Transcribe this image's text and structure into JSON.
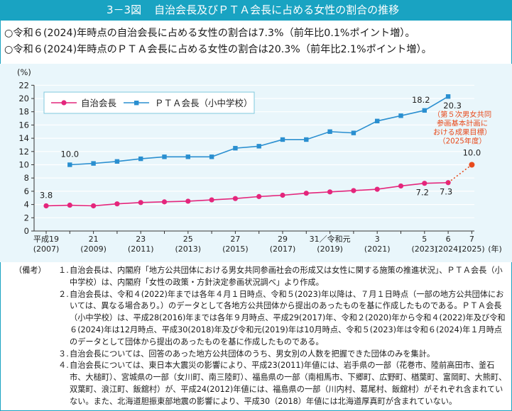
{
  "header": {
    "figure_no": "3－3図",
    "title": "自治会長及びＰＴＡ会長に占める女性の割合の推移"
  },
  "summary": [
    "○令和６(2024)年時点の自治会長に占める女性の割合は7.3%（前年比0.1%ポイント増）。",
    "○令和６(2024)年時点のＰＴＡ会長に占める女性の割合は20.3%（前年比2.1%ポイント増）。"
  ],
  "colors": {
    "jichi": "#e4267c",
    "pta": "#2a8fd0",
    "target": "#e84a1c",
    "teal": "#19a3c2"
  },
  "chart_data": {
    "type": "line",
    "title": "",
    "ylabel": "(%)",
    "xlabel": "(年)",
    "ylim": [
      0,
      22
    ],
    "yticks": [
      0,
      2,
      4,
      6,
      8,
      10,
      12,
      14,
      16,
      18,
      20,
      22
    ],
    "x": [
      2007,
      2008,
      2009,
      2010,
      2011,
      2012,
      2013,
      2014,
      2015,
      2016,
      2017,
      2018,
      2019,
      2020,
      2021,
      2022,
      2023,
      2024,
      2025
    ],
    "xtick_labels": [
      {
        "year": 2007,
        "top": "平成19",
        "bottom": "(2007)"
      },
      {
        "year": 2009,
        "top": "21",
        "bottom": "(2009)"
      },
      {
        "year": 2011,
        "top": "23",
        "bottom": "(2011)"
      },
      {
        "year": 2013,
        "top": "25",
        "bottom": "(2013)"
      },
      {
        "year": 2015,
        "top": "27",
        "bottom": "(2015)"
      },
      {
        "year": 2017,
        "top": "29",
        "bottom": "(2017)"
      },
      {
        "year": 2019,
        "top": "31／令和元",
        "bottom": "(2019)"
      },
      {
        "year": 2021,
        "top": "3",
        "bottom": "(2021)"
      },
      {
        "year": 2023,
        "top": "5",
        "bottom": "(2023)"
      },
      {
        "year": 2024,
        "top": "6",
        "bottom": "(2024)"
      },
      {
        "year": 2025,
        "top": "7",
        "bottom": "(2025)"
      }
    ],
    "series": [
      {
        "name": "自治会長",
        "marker": "circle",
        "x": [
          2007,
          2008,
          2009,
          2010,
          2011,
          2012,
          2013,
          2014,
          2015,
          2016,
          2017,
          2018,
          2019,
          2020,
          2021,
          2022,
          2023,
          2024
        ],
        "values": [
          3.8,
          3.9,
          3.8,
          4.1,
          4.3,
          4.4,
          4.5,
          4.7,
          4.9,
          5.2,
          5.4,
          5.7,
          5.9,
          6.1,
          6.3,
          6.8,
          7.2,
          7.3
        ]
      },
      {
        "name": "ＰＴＡ会長（小中学校）",
        "marker": "square",
        "x": [
          2008,
          2009,
          2010,
          2011,
          2012,
          2013,
          2014,
          2015,
          2016,
          2017,
          2018,
          2019,
          2020,
          2021,
          2022,
          2023,
          2024
        ],
        "values": [
          10.0,
          10.2,
          10.5,
          10.9,
          11.2,
          11.2,
          11.2,
          12.5,
          12.8,
          13.8,
          13.8,
          15.0,
          14.8,
          16.6,
          17.4,
          18.2,
          20.3
        ]
      }
    ],
    "target": {
      "x": 2025,
      "value": 10.0,
      "from_x": 2024,
      "from_value": 7.3,
      "note": [
        "（第５次男女共同",
        "参画基本計画に",
        "おける成果目標）",
        "（2025年度）"
      ]
    },
    "data_labels": [
      {
        "series": 0,
        "x": 2007,
        "text": "3.8"
      },
      {
        "series": 0,
        "x": 2023,
        "text": "7.2"
      },
      {
        "series": 0,
        "x": 2024,
        "text": "7.3"
      },
      {
        "series": 1,
        "x": 2008,
        "text": "10.0"
      },
      {
        "series": 1,
        "x": 2023,
        "text": "18.2"
      },
      {
        "series": 1,
        "x": 2024,
        "text": "20.3"
      },
      {
        "series": "target",
        "x": 2025,
        "text": "10.0"
      }
    ],
    "legend": "top-left"
  },
  "notes": {
    "head": "（備考）",
    "items": [
      {
        "num": "１.",
        "text": "自治会長は、内閣府「地方公共団体における男女共同参画社会の形成又は女性に関する施策の推進状況」、ＰＴＡ会長（小中学校）は、内閣府「女性の政策・方針決定参画状況調べ」より作成。"
      },
      {
        "num": "２.",
        "text": "自治会長は、令和４(2022)年までは各年４月１日時点、令和５(2023)年以降は、７月１日時点（一部の地方公共団体においては、異なる場合あり。）のデータとして各地方公共団体から提出のあったものを基に作成したものである。ＰＴＡ会長（小中学校）は、平成28(2016)年までは各年９月時点、平成29(2017)年、令和２(2020)年から令和４(2022)年及び令和６(2024)年は12月時点、平成30(2018)年及び令和元(2019)年は10月時点、令和５(2023)年は令和６(2024)年１月時点のデータとして団体から提出のあったものを基に作成したものである。"
      },
      {
        "num": "３.",
        "text": "自治会長については、回答のあった地方公共団体のうち、男女別の人数を把握できた団体のみを集計。"
      },
      {
        "num": "４.",
        "text": "自治会長については、東日本大震災の影響により、平成23(2011)年値には、岩手県の一部（花巻市、陸前高田市、釜石市、大槌町）、宮城県の一部（女川町、南三陸町）、福島県の一部（南相馬市、下郷町、広野町、楢葉町、富岡町、大熊町、双葉町、浪江町、飯舘村）が、平成24(2012)年値には、福島県の一部（川内村、葛尾村、飯舘村）がそれぞれ含まれていない。また、北海道胆振東部地震の影響により、平成30（2018）年値には北海道厚真町が含まれていない。"
      }
    ]
  }
}
